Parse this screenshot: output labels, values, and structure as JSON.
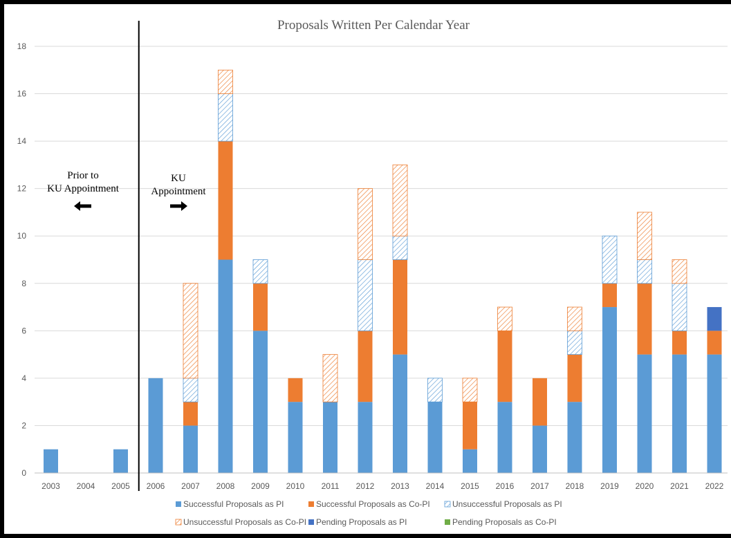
{
  "chart_data": {
    "type": "bar",
    "stacked": true,
    "title": "Proposals Written Per Calendar Year",
    "xlabel": "",
    "ylabel": "",
    "categories": [
      "2003",
      "2004",
      "2005",
      "2006",
      "2007",
      "2008",
      "2009",
      "2010",
      "2011",
      "2012",
      "2013",
      "2014",
      "2015",
      "2016",
      "2017",
      "2018",
      "2019",
      "2020",
      "2021",
      "2022"
    ],
    "ylim": [
      0,
      18
    ],
    "yticks": [
      0,
      2,
      4,
      6,
      8,
      10,
      12,
      14,
      16,
      18
    ],
    "grid": true,
    "legend_position": "bottom",
    "series": [
      {
        "name": "Successful Proposals as PI",
        "color": "#5b9bd5",
        "pattern": "solid",
        "values": [
          1,
          0,
          1,
          4,
          2,
          9,
          6,
          3,
          3,
          3,
          5,
          3,
          1,
          3,
          2,
          3,
          7,
          5,
          5,
          5
        ]
      },
      {
        "name": "Successful Proposals as Co-PI",
        "color": "#ed7d31",
        "pattern": "solid",
        "values": [
          0,
          0,
          0,
          0,
          1,
          5,
          2,
          1,
          0,
          3,
          4,
          0,
          2,
          3,
          2,
          2,
          1,
          3,
          1,
          1
        ]
      },
      {
        "name": "Unsuccessful Proposals as PI",
        "color": "#5b9bd5",
        "pattern": "hatch",
        "values": [
          0,
          0,
          0,
          0,
          1,
          2,
          1,
          0,
          0,
          3,
          1,
          1,
          0,
          0,
          0,
          1,
          2,
          1,
          2,
          0
        ]
      },
      {
        "name": "Unsuccessful Proposals as Co-PI",
        "color": "#ed7d31",
        "pattern": "hatch",
        "values": [
          0,
          0,
          0,
          0,
          4,
          1,
          0,
          0,
          2,
          3,
          3,
          0,
          1,
          1,
          0,
          1,
          0,
          2,
          1,
          0
        ]
      },
      {
        "name": "Pending Proposals as PI",
        "color": "#4472c4",
        "pattern": "solid",
        "values": [
          0,
          0,
          0,
          0,
          0,
          0,
          0,
          0,
          0,
          0,
          0,
          0,
          0,
          0,
          0,
          0,
          0,
          0,
          0,
          1
        ]
      },
      {
        "name": "Pending Proposals as Co-PI",
        "color": "#70ad47",
        "pattern": "solid",
        "values": [
          0,
          0,
          0,
          0,
          0,
          0,
          0,
          0,
          0,
          0,
          0,
          0,
          0,
          0,
          0,
          0,
          0,
          0,
          0,
          0
        ]
      }
    ],
    "annotations": [
      {
        "id": "prior",
        "lines": [
          "Prior to",
          "KU Appointment"
        ],
        "arrow": "left"
      },
      {
        "id": "ku",
        "lines": [
          "KU",
          "Appointment"
        ],
        "arrow": "right"
      }
    ],
    "divider_after_category": "2005"
  }
}
